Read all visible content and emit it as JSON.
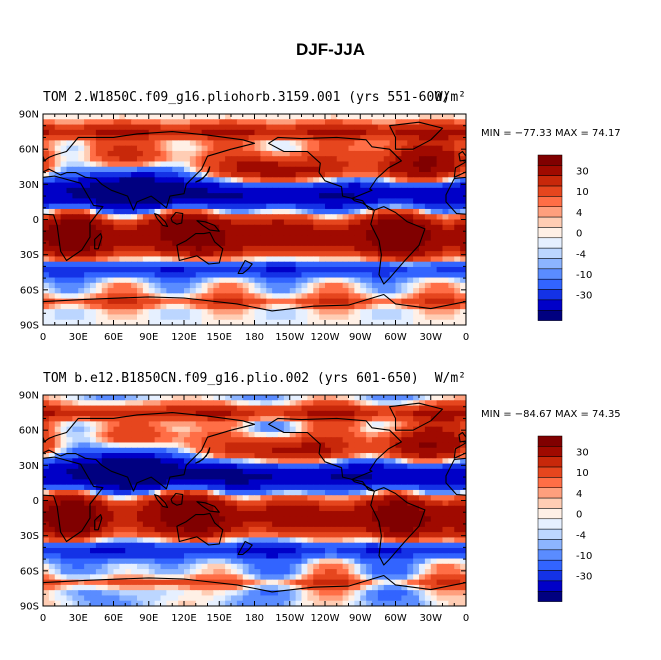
{
  "title": "DJF-JJA",
  "colors": [
    "#000080",
    "#0000c8",
    "#1432e6",
    "#3264ff",
    "#5a8cff",
    "#8cb4ff",
    "#bcd6ff",
    "#e6f0ff",
    "#fff0e6",
    "#ffcdb4",
    "#ff9f7d",
    "#ff6e46",
    "#e6461e",
    "#c8280a",
    "#a00a00",
    "#800000"
  ],
  "colorbar_labels": [
    "30",
    "10",
    "4",
    "0",
    "-4",
    "-10",
    "-30"
  ],
  "chart_data": [
    {
      "type": "heatmap",
      "left_title": "TOM 2.W1850C.f09_g16.pliohorb.3159.001 (yrs 551-600)",
      "right_title": "W/m²",
      "stats": "MIN = −77.33  MAX =  74.17",
      "min": -77.33,
      "max": 74.17,
      "x_ticks": [
        "0",
        "30E",
        "60E",
        "90E",
        "120E",
        "150E",
        "180",
        "150W",
        "120W",
        "90W",
        "60W",
        "30W",
        "0"
      ],
      "y_ticks": [
        "90N",
        "60N",
        "30N",
        "0",
        "30S",
        "60S",
        "90S"
      ],
      "xlim": [
        0,
        360
      ],
      "ylim": [
        -90,
        90
      ],
      "colorbar_levels": [
        -30,
        -10,
        -4,
        0,
        4,
        10,
        30
      ]
    },
    {
      "type": "heatmap",
      "left_title": "TOM  b.e12.B1850CN.f09_g16.plio.002 (yrs 601-650)",
      "right_title": "W/m²",
      "stats": "MIN = −84.67  MAX =  74.35",
      "min": -84.67,
      "max": 74.35,
      "x_ticks": [
        "0",
        "30E",
        "60E",
        "90E",
        "120E",
        "150E",
        "180",
        "150W",
        "120W",
        "90W",
        "60W",
        "30W",
        "0"
      ],
      "y_ticks": [
        "90N",
        "60N",
        "30N",
        "0",
        "30S",
        "60S",
        "90S"
      ],
      "xlim": [
        0,
        360
      ],
      "ylim": [
        -90,
        90
      ],
      "colorbar_levels": [
        -30,
        -10,
        -4,
        0,
        4,
        10,
        30
      ]
    }
  ]
}
